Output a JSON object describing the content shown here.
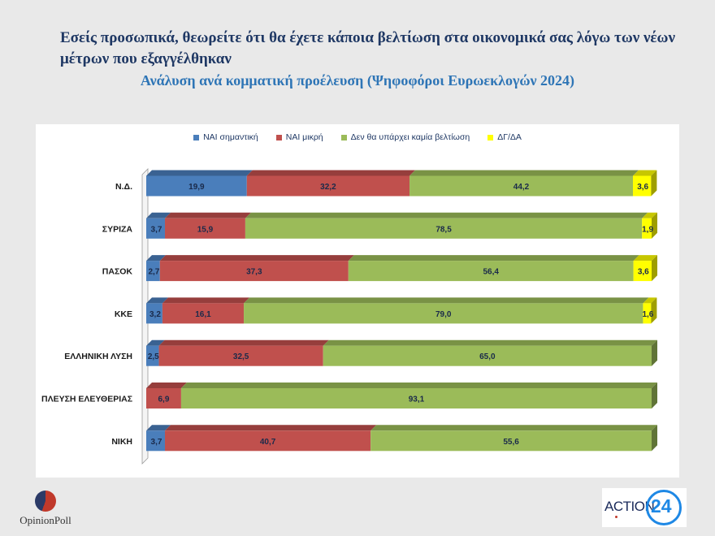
{
  "header": {
    "title": "Εσείς προσωπικά, θεωρείτε ότι θα έχετε κάποια βελτίωση στα οικονομικά σας λόγω των νέων μέτρων που εξαγγέλθηκαν",
    "subtitle": "Ανάλυση ανά κομματική προέλευση (Ψηφοφόροι Ευρωεκλογών 2024)"
  },
  "logos": {
    "left_text": "OpinionPoll",
    "right_text": "ACTION",
    "right_number": "24"
  },
  "chart_data": {
    "type": "bar",
    "orientation": "horizontal",
    "stacked": true,
    "style": "3d",
    "legend_position": "top",
    "xlim": [
      0,
      100
    ],
    "categories": [
      "Ν.Δ.",
      "ΣΥΡΙΖΑ",
      "ΠΑΣΟΚ",
      "ΚΚΕ",
      "ΕΛΛΗΝΙΚΗ ΛΥΣΗ",
      "ΠΛΕΥΣΗ ΕΛΕΥΘΕΡΙΑΣ",
      "ΝΙΚΗ"
    ],
    "series": [
      {
        "name": "ΝΑΙ σημαντική",
        "color": "#4a7ebb",
        "values": [
          19.9,
          3.7,
          2.7,
          3.2,
          2.5,
          0,
          3.7
        ],
        "labels": [
          "19,9",
          "3,7",
          "2,7",
          "3,2",
          "2,5",
          "",
          "3,7"
        ]
      },
      {
        "name": "ΝΑΙ μικρή",
        "color": "#c0504d",
        "values": [
          32.2,
          15.9,
          37.3,
          16.1,
          32.5,
          6.9,
          40.7
        ],
        "labels": [
          "32,2",
          "15,9",
          "37,3",
          "16,1",
          "32,5",
          "6,9",
          "40,7"
        ]
      },
      {
        "name": "Δεν θα υπάρχει καμία βελτίωση",
        "color": "#9bbb59",
        "values": [
          44.2,
          78.5,
          56.4,
          79.0,
          65.0,
          93.1,
          55.6
        ],
        "labels": [
          "44,2",
          "78,5",
          "56,4",
          "79,0",
          "65,0",
          "93,1",
          "55,6"
        ]
      },
      {
        "name": "ΔΓ/ΔΑ",
        "color": "#ffff00",
        "values": [
          3.6,
          1.9,
          3.6,
          1.6,
          0,
          0,
          0
        ],
        "labels": [
          "3,6",
          "1,9",
          "3,6",
          "1,6",
          "",
          "",
          ""
        ]
      }
    ]
  }
}
